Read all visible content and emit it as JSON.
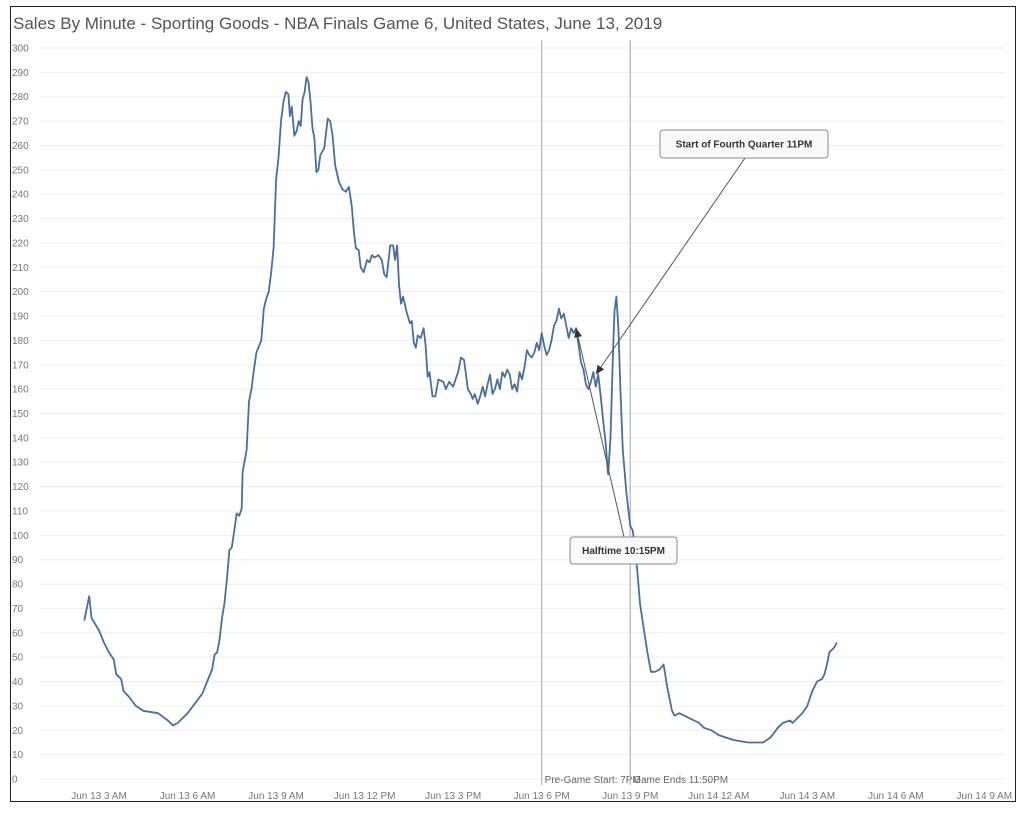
{
  "chart_data": {
    "type": "line",
    "title": "Sales By Minute - Sporting Goods - NBA Finals Game 6, United States, June 13, 2019",
    "xlabel": "",
    "ylabel": "",
    "ylim": [
      0,
      300
    ],
    "yticks": [
      0,
      10,
      20,
      30,
      40,
      50,
      60,
      70,
      80,
      90,
      100,
      110,
      120,
      130,
      140,
      150,
      160,
      170,
      180,
      190,
      200,
      210,
      220,
      230,
      240,
      250,
      260,
      270,
      280,
      290,
      300
    ],
    "xlim": [
      "2019-06-13 01:00",
      "2019-06-14 09:40"
    ],
    "xticks": [
      {
        "t": "2019-06-13 03:00",
        "label": "Jun 13 3 AM"
      },
      {
        "t": "2019-06-13 06:00",
        "label": "Jun 13 6 AM"
      },
      {
        "t": "2019-06-13 09:00",
        "label": "Jun 13 9 AM"
      },
      {
        "t": "2019-06-13 12:00",
        "label": "Jun 13 12 PM"
      },
      {
        "t": "2019-06-13 15:00",
        "label": "Jun 13 3 PM"
      },
      {
        "t": "2019-06-13 18:00",
        "label": "Jun 13 6 PM"
      },
      {
        "t": "2019-06-13 21:00",
        "label": "Jun 13 9 PM"
      },
      {
        "t": "2019-06-14 00:00",
        "label": "Jun 14 12 AM"
      },
      {
        "t": "2019-06-14 03:00",
        "label": "Jun 14 3 AM"
      },
      {
        "t": "2019-06-14 06:00",
        "label": "Jun 14 6 AM"
      },
      {
        "t": "2019-06-14 09:00",
        "label": "Jun 14 9 AM"
      }
    ],
    "grid": "horizontal",
    "series": [
      {
        "name": "",
        "color": "#4a6e9e",
        "points": [
          [
            "2019-06-13 02:30",
            65
          ],
          [
            "2019-06-13 02:40",
            75
          ],
          [
            "2019-06-13 02:45",
            66
          ],
          [
            "2019-06-13 03:00",
            61
          ],
          [
            "2019-06-13 03:10",
            56
          ],
          [
            "2019-06-13 03:20",
            52
          ],
          [
            "2019-06-13 03:30",
            49
          ],
          [
            "2019-06-13 03:35",
            43
          ],
          [
            "2019-06-13 03:45",
            41
          ],
          [
            "2019-06-13 03:50",
            36
          ],
          [
            "2019-06-13 04:00",
            34
          ],
          [
            "2019-06-13 04:15",
            30
          ],
          [
            "2019-06-13 04:30",
            28
          ],
          [
            "2019-06-13 05:00",
            27
          ],
          [
            "2019-06-13 05:20",
            24
          ],
          [
            "2019-06-13 05:30",
            22
          ],
          [
            "2019-06-13 05:40",
            23
          ],
          [
            "2019-06-13 05:50",
            25
          ],
          [
            "2019-06-13 06:00",
            27
          ],
          [
            "2019-06-13 06:15",
            31
          ],
          [
            "2019-06-13 06:30",
            35
          ],
          [
            "2019-06-13 06:40",
            40
          ],
          [
            "2019-06-13 06:50",
            45
          ],
          [
            "2019-06-13 06:55",
            51
          ],
          [
            "2019-06-13 07:00",
            52
          ],
          [
            "2019-06-13 07:05",
            57
          ],
          [
            "2019-06-13 07:10",
            66
          ],
          [
            "2019-06-13 07:15",
            72
          ],
          [
            "2019-06-13 07:20",
            82
          ],
          [
            "2019-06-13 07:25",
            94
          ],
          [
            "2019-06-13 07:30",
            95
          ],
          [
            "2019-06-13 07:35",
            102
          ],
          [
            "2019-06-13 07:40",
            109
          ],
          [
            "2019-06-13 07:45",
            108
          ],
          [
            "2019-06-13 07:50",
            111
          ],
          [
            "2019-06-13 07:52",
            126
          ],
          [
            "2019-06-13 08:00",
            135
          ],
          [
            "2019-06-13 08:05",
            155
          ],
          [
            "2019-06-13 08:10",
            160
          ],
          [
            "2019-06-13 08:15",
            168
          ],
          [
            "2019-06-13 08:20",
            175
          ],
          [
            "2019-06-13 08:30",
            180
          ],
          [
            "2019-06-13 08:35",
            193
          ],
          [
            "2019-06-13 08:40",
            197
          ],
          [
            "2019-06-13 08:45",
            200
          ],
          [
            "2019-06-13 08:50",
            208
          ],
          [
            "2019-06-13 08:55",
            218
          ],
          [
            "2019-06-13 09:00",
            246
          ],
          [
            "2019-06-13 09:05",
            255
          ],
          [
            "2019-06-13 09:10",
            270
          ],
          [
            "2019-06-13 09:15",
            278
          ],
          [
            "2019-06-13 09:20",
            282
          ],
          [
            "2019-06-13 09:25",
            281
          ],
          [
            "2019-06-13 09:28",
            272
          ],
          [
            "2019-06-13 09:32",
            276
          ],
          [
            "2019-06-13 09:37",
            264
          ],
          [
            "2019-06-13 09:42",
            266
          ],
          [
            "2019-06-13 09:46",
            270
          ],
          [
            "2019-06-13 09:50",
            268
          ],
          [
            "2019-06-13 09:54",
            279
          ],
          [
            "2019-06-13 09:58",
            282
          ],
          [
            "2019-06-13 10:02",
            288
          ],
          [
            "2019-06-13 10:06",
            286
          ],
          [
            "2019-06-13 10:10",
            278
          ],
          [
            "2019-06-13 10:14",
            267
          ],
          [
            "2019-06-13 10:18",
            263
          ],
          [
            "2019-06-13 10:22",
            249
          ],
          [
            "2019-06-13 10:26",
            250
          ],
          [
            "2019-06-13 10:30",
            256
          ],
          [
            "2019-06-13 10:38",
            259
          ],
          [
            "2019-06-13 10:45",
            271
          ],
          [
            "2019-06-13 10:50",
            270
          ],
          [
            "2019-06-13 10:55",
            264
          ],
          [
            "2019-06-13 11:00",
            252
          ],
          [
            "2019-06-13 11:08",
            245
          ],
          [
            "2019-06-13 11:15",
            242
          ],
          [
            "2019-06-13 11:22",
            241
          ],
          [
            "2019-06-13 11:28",
            243
          ],
          [
            "2019-06-13 11:34",
            235
          ],
          [
            "2019-06-13 11:38",
            225
          ],
          [
            "2019-06-13 11:42",
            218
          ],
          [
            "2019-06-13 11:48",
            217
          ],
          [
            "2019-06-13 11:52",
            210
          ],
          [
            "2019-06-13 11:58",
            208
          ],
          [
            "2019-06-13 12:05",
            213
          ],
          [
            "2019-06-13 12:10",
            212
          ],
          [
            "2019-06-13 12:15",
            215
          ],
          [
            "2019-06-13 12:20",
            214
          ],
          [
            "2019-06-13 12:28",
            215
          ],
          [
            "2019-06-13 12:35",
            213
          ],
          [
            "2019-06-13 12:40",
            207
          ],
          [
            "2019-06-13 12:45",
            206
          ],
          [
            "2019-06-13 12:52",
            219
          ],
          [
            "2019-06-13 12:58",
            219
          ],
          [
            "2019-06-13 13:02",
            213
          ],
          [
            "2019-06-13 13:06",
            219
          ],
          [
            "2019-06-13 13:10",
            203
          ],
          [
            "2019-06-13 13:14",
            195
          ],
          [
            "2019-06-13 13:18",
            198
          ],
          [
            "2019-06-13 13:25",
            192
          ],
          [
            "2019-06-13 13:32",
            187
          ],
          [
            "2019-06-13 13:36",
            188
          ],
          [
            "2019-06-13 13:40",
            179
          ],
          [
            "2019-06-13 13:44",
            177
          ],
          [
            "2019-06-13 13:48",
            182
          ],
          [
            "2019-06-13 13:54",
            181
          ],
          [
            "2019-06-13 14:00",
            185
          ],
          [
            "2019-06-13 14:04",
            178
          ],
          [
            "2019-06-13 14:08",
            165
          ],
          [
            "2019-06-13 14:12",
            167
          ],
          [
            "2019-06-13 14:18",
            157
          ],
          [
            "2019-06-13 14:24",
            157
          ],
          [
            "2019-06-13 14:30",
            164
          ],
          [
            "2019-06-13 14:40",
            163
          ],
          [
            "2019-06-13 14:45",
            160
          ],
          [
            "2019-06-13 14:52",
            163
          ],
          [
            "2019-06-13 15:00",
            161
          ],
          [
            "2019-06-13 15:10",
            167
          ],
          [
            "2019-06-13 15:16",
            173
          ],
          [
            "2019-06-13 15:22",
            172
          ],
          [
            "2019-06-13 15:30",
            160
          ],
          [
            "2019-06-13 15:36",
            158
          ],
          [
            "2019-06-13 15:40",
            156
          ],
          [
            "2019-06-13 15:44",
            158
          ],
          [
            "2019-06-13 15:50",
            154
          ],
          [
            "2019-06-13 15:55",
            157
          ],
          [
            "2019-06-13 16:00",
            161
          ],
          [
            "2019-06-13 16:05",
            157
          ],
          [
            "2019-06-13 16:10",
            162
          ],
          [
            "2019-06-13 16:15",
            166
          ],
          [
            "2019-06-13 16:20",
            158
          ],
          [
            "2019-06-13 16:25",
            160
          ],
          [
            "2019-06-13 16:30",
            164
          ],
          [
            "2019-06-13 16:35",
            160
          ],
          [
            "2019-06-13 16:40",
            167
          ],
          [
            "2019-06-13 16:45",
            165
          ],
          [
            "2019-06-13 16:50",
            168
          ],
          [
            "2019-06-13 16:55",
            166
          ],
          [
            "2019-06-13 17:00",
            160
          ],
          [
            "2019-06-13 17:05",
            162
          ],
          [
            "2019-06-13 17:10",
            159
          ],
          [
            "2019-06-13 17:15",
            167
          ],
          [
            "2019-06-13 17:20",
            164
          ],
          [
            "2019-06-13 17:25",
            169
          ],
          [
            "2019-06-13 17:30",
            176
          ],
          [
            "2019-06-13 17:35",
            174
          ],
          [
            "2019-06-13 17:40",
            173
          ],
          [
            "2019-06-13 17:45",
            175
          ],
          [
            "2019-06-13 17:50",
            179
          ],
          [
            "2019-06-13 17:55",
            176
          ],
          [
            "2019-06-13 18:00",
            183
          ],
          [
            "2019-06-13 18:05",
            178
          ],
          [
            "2019-06-13 18:10",
            174
          ],
          [
            "2019-06-13 18:15",
            176
          ],
          [
            "2019-06-13 18:20",
            180
          ],
          [
            "2019-06-13 18:25",
            186
          ],
          [
            "2019-06-13 18:30",
            188
          ],
          [
            "2019-06-13 18:35",
            193
          ],
          [
            "2019-06-13 18:40",
            189
          ],
          [
            "2019-06-13 18:45",
            191
          ],
          [
            "2019-06-13 18:50",
            186
          ],
          [
            "2019-06-13 18:55",
            181
          ],
          [
            "2019-06-13 19:00",
            185
          ],
          [
            "2019-06-13 19:05",
            183
          ],
          [
            "2019-06-13 19:10",
            185
          ],
          [
            "2019-06-13 19:15",
            178
          ],
          [
            "2019-06-13 19:20",
            171
          ],
          [
            "2019-06-13 19:25",
            168
          ],
          [
            "2019-06-13 19:30",
            162
          ],
          [
            "2019-06-13 19:35",
            160
          ],
          [
            "2019-06-13 19:40",
            163
          ],
          [
            "2019-06-13 19:45",
            167
          ],
          [
            "2019-06-13 19:50",
            161
          ],
          [
            "2019-06-13 19:55",
            166
          ],
          [
            "2019-06-13 20:00",
            157
          ],
          [
            "2019-06-13 20:05",
            147
          ],
          [
            "2019-06-13 20:10",
            138
          ],
          [
            "2019-06-13 20:15",
            125
          ],
          [
            "2019-06-13 20:20",
            140
          ],
          [
            "2019-06-13 20:25",
            175
          ],
          [
            "2019-06-13 20:28",
            192
          ],
          [
            "2019-06-13 20:32",
            198
          ],
          [
            "2019-06-13 20:36",
            185
          ],
          [
            "2019-06-13 20:40",
            160
          ],
          [
            "2019-06-13 20:45",
            135
          ],
          [
            "2019-06-13 20:52",
            118
          ],
          [
            "2019-06-13 21:00",
            104
          ],
          [
            "2019-06-13 21:05",
            102
          ],
          [
            "2019-06-13 21:10",
            95
          ],
          [
            "2019-06-13 21:15",
            84
          ],
          [
            "2019-06-13 21:20",
            72
          ],
          [
            "2019-06-13 21:28",
            61
          ],
          [
            "2019-06-13 21:35",
            52
          ],
          [
            "2019-06-13 21:42",
            44
          ],
          [
            "2019-06-13 21:50",
            44
          ],
          [
            "2019-06-13 22:00",
            45
          ],
          [
            "2019-06-13 22:08",
            47
          ],
          [
            "2019-06-13 22:15",
            38
          ],
          [
            "2019-06-13 22:25",
            28
          ],
          [
            "2019-06-13 22:30",
            26
          ],
          [
            "2019-06-13 22:40",
            27
          ],
          [
            "2019-06-13 23:00",
            25
          ],
          [
            "2019-06-13 23:20",
            23
          ],
          [
            "2019-06-13 23:30",
            21
          ],
          [
            "2019-06-13 23:45",
            20
          ],
          [
            "2019-06-14 00:00",
            18
          ],
          [
            "2019-06-14 00:30",
            16
          ],
          [
            "2019-06-14 01:00",
            15
          ],
          [
            "2019-06-14 01:30",
            15
          ],
          [
            "2019-06-14 01:45",
            17
          ],
          [
            "2019-06-14 02:00",
            21
          ],
          [
            "2019-06-14 02:10",
            23
          ],
          [
            "2019-06-14 02:25",
            24
          ],
          [
            "2019-06-14 02:30",
            23
          ],
          [
            "2019-06-14 02:40",
            25
          ],
          [
            "2019-06-14 02:50",
            27
          ],
          [
            "2019-06-14 03:00",
            30
          ],
          [
            "2019-06-14 03:10",
            36
          ],
          [
            "2019-06-14 03:20",
            40
          ],
          [
            "2019-06-14 03:30",
            41
          ],
          [
            "2019-06-14 03:35",
            43
          ],
          [
            "2019-06-14 03:40",
            47
          ],
          [
            "2019-06-14 03:45",
            52
          ],
          [
            "2019-06-14 03:55",
            54
          ],
          [
            "2019-06-14 04:00",
            56
          ]
        ]
      }
    ],
    "reference_lines": [
      {
        "t": "2019-06-13 18:00",
        "label": "Pre-Game Start: 7PM"
      },
      {
        "t": "2019-06-13 21:00",
        "label": "Game Ends 11:50PM"
      }
    ],
    "annotations": [
      {
        "label": "Start of Fourth Quarter 11PM",
        "t": "2019-06-13 19:50",
        "y": 166
      },
      {
        "label": "Halftime 10:15PM",
        "t": "2019-06-13 19:10",
        "y": 185
      }
    ]
  }
}
